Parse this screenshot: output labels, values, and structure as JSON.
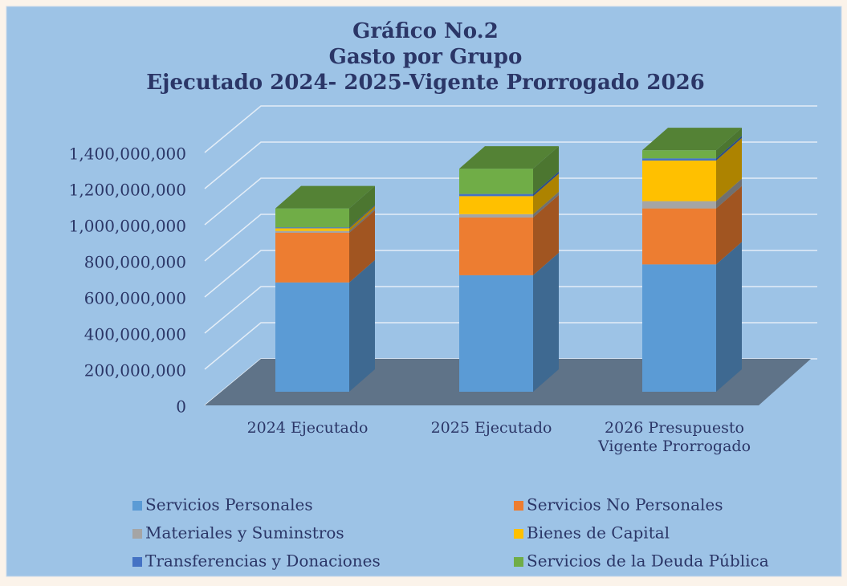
{
  "chart_data": {
    "type": "bar3d_stacked",
    "title": [
      "Gráfico No.2",
      "Gasto por Grupo",
      "Ejecutado 2024- 2025-Vigente Prorrogado 2026"
    ],
    "categories": [
      "2024 Ejecutado",
      "2025 Ejecutado",
      "2026 Presupuesto Vigente Prorrogado"
    ],
    "series": [
      {
        "name": "Servicios Personales",
        "color": "#5b9bd5",
        "values": [
          605000000,
          645000000,
          705000000
        ]
      },
      {
        "name": "Servicios No Personales",
        "color": "#ed7d31",
        "values": [
          275000000,
          320000000,
          310000000
        ]
      },
      {
        "name": "Materiales y Suminstros",
        "color": "#a5a5a5",
        "values": [
          10000000,
          18000000,
          40000000
        ]
      },
      {
        "name": "Bienes de Capital",
        "color": "#ffc000",
        "values": [
          15000000,
          100000000,
          225000000
        ]
      },
      {
        "name": "Transferencias y Donaciones",
        "color": "#4472c4",
        "values": [
          5000000,
          12000000,
          12000000
        ]
      },
      {
        "name": "Servicios de la Deuda Pública",
        "color": "#70ad47",
        "values": [
          105000000,
          140000000,
          45000000
        ]
      }
    ],
    "ylim": [
      0,
      1400000000
    ],
    "yticks": [
      0,
      {
        "value": 200000000,
        "label": "200,000,000"
      },
      {
        "value": 400000000,
        "label": "400,000,000"
      },
      {
        "value": 600000000,
        "label": "600,000,000"
      },
      {
        "value": 800000000,
        "label": "800,000,000"
      },
      {
        "value": 1000000000,
        "label": "1,000,000,000"
      },
      {
        "value": 1200000000,
        "label": "1,200,000,000"
      },
      {
        "value": 1400000000,
        "label": "1,400,000,000"
      }
    ],
    "grid": true,
    "legend": "bottom"
  }
}
